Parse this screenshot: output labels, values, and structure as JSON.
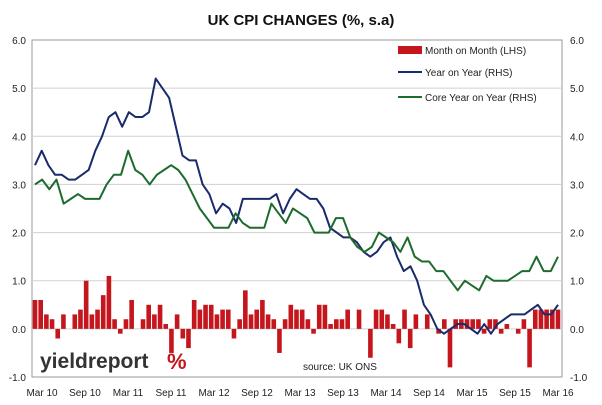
{
  "chart_data": {
    "type": "bar+line",
    "title": "UK CPI CHANGES (%, s.a)",
    "source": "source: UK ONS",
    "brand": {
      "word": "yieldreport",
      "symbol": "%"
    },
    "x_tick_labels": [
      "Mar 10",
      "Sep 10",
      "Mar 11",
      "Sep 11",
      "Mar 12",
      "Sep 12",
      "Mar 13",
      "Sep 13",
      "Mar 14",
      "Sep 14",
      "Mar 15",
      "Sep 15",
      "Mar 16"
    ],
    "ylim_left": [
      -1.0,
      6.0
    ],
    "ylim_right": [
      -1.0,
      6.0
    ],
    "y_ticks": [
      "-1.0",
      "0.0",
      "1.0",
      "2.0",
      "3.0",
      "4.0",
      "5.0",
      "6.0"
    ],
    "grid": true,
    "legend_position": "top-right",
    "colors": {
      "bar": "#c4161c",
      "yoy": "#1a2b6b",
      "core": "#1e6b2e"
    },
    "series": [
      {
        "name": "Month on Month (LHS)",
        "type": "bar",
        "axis": "left",
        "values": [
          0.6,
          0.6,
          0.3,
          0.2,
          -0.2,
          0.3,
          0.0,
          0.3,
          0.4,
          1.0,
          0.3,
          0.4,
          0.7,
          1.1,
          0.2,
          -0.1,
          0.2,
          0.6,
          0.0,
          0.2,
          0.5,
          0.3,
          0.5,
          0.1,
          -0.5,
          0.3,
          -0.2,
          -0.4,
          0.6,
          0.4,
          0.5,
          0.5,
          0.3,
          0.4,
          0.4,
          -0.2,
          0.2,
          0.8,
          0.3,
          0.4,
          0.6,
          0.3,
          0.2,
          -0.5,
          0.2,
          0.5,
          0.4,
          0.4,
          0.2,
          -0.1,
          0.5,
          0.5,
          0.1,
          0.2,
          0.2,
          0.4,
          0.0,
          0.4,
          0.0,
          -0.6,
          0.4,
          0.4,
          0.3,
          0.1,
          -0.3,
          0.4,
          -0.4,
          0.3,
          0.0,
          0.3,
          0.0,
          -0.1,
          0.2,
          -0.8,
          0.2,
          0.2,
          0.2,
          0.2,
          0.2,
          -0.1,
          0.2,
          0.2,
          -0.1,
          0.1,
          0.0,
          -0.1,
          0.2,
          -0.8,
          0.4,
          0.4,
          0.4,
          0.4,
          0.4
        ],
        "bar_values_note": ""
      },
      {
        "name": "Year on Year (RHS)",
        "type": "line",
        "axis": "right",
        "values": [
          3.4,
          3.7,
          3.4,
          3.2,
          3.2,
          3.1,
          3.1,
          3.2,
          3.3,
          3.7,
          4.0,
          4.4,
          4.5,
          4.2,
          4.5,
          4.4,
          4.4,
          4.5,
          5.2,
          5.0,
          4.8,
          4.2,
          3.6,
          3.5,
          3.5,
          3.0,
          2.8,
          2.4,
          2.6,
          2.5,
          2.2,
          2.7,
          2.7,
          2.7,
          2.7,
          2.7,
          2.8,
          2.4,
          2.7,
          2.9,
          2.8,
          2.7,
          2.7,
          2.5,
          2.1,
          2.0,
          1.9,
          1.9,
          1.8,
          1.6,
          1.5,
          1.6,
          1.8,
          1.9,
          1.5,
          1.2,
          1.3,
          1.0,
          0.5,
          0.3,
          0.0,
          -0.1,
          0.0,
          0.1,
          0.1,
          0.0,
          -0.1,
          0.1,
          -0.1,
          0.1,
          0.2,
          0.3,
          0.3,
          0.3,
          0.4,
          0.5,
          0.3,
          0.3,
          0.5
        ]
      },
      {
        "name": "Core Year on Year (RHS)",
        "type": "line",
        "axis": "right",
        "values": [
          3.0,
          3.1,
          2.9,
          3.1,
          2.6,
          2.7,
          2.8,
          2.7,
          2.7,
          2.7,
          3.0,
          3.2,
          3.2,
          3.7,
          3.3,
          3.2,
          3.0,
          3.2,
          3.3,
          3.4,
          3.3,
          3.1,
          2.8,
          2.5,
          2.3,
          2.1,
          2.1,
          2.1,
          2.4,
          2.2,
          2.1,
          2.1,
          2.1,
          2.6,
          2.4,
          2.2,
          2.5,
          2.4,
          2.3,
          2.0,
          2.0,
          2.0,
          2.3,
          2.3,
          1.9,
          1.7,
          1.6,
          1.7,
          2.0,
          1.9,
          1.8,
          1.6,
          1.9,
          1.5,
          1.4,
          1.4,
          1.2,
          1.2,
          1.0,
          0.8,
          1.0,
          0.9,
          0.8,
          1.1,
          1.0,
          1.0,
          1.0,
          1.1,
          1.2,
          1.2,
          1.5,
          1.2,
          1.2,
          1.5
        ]
      }
    ]
  }
}
